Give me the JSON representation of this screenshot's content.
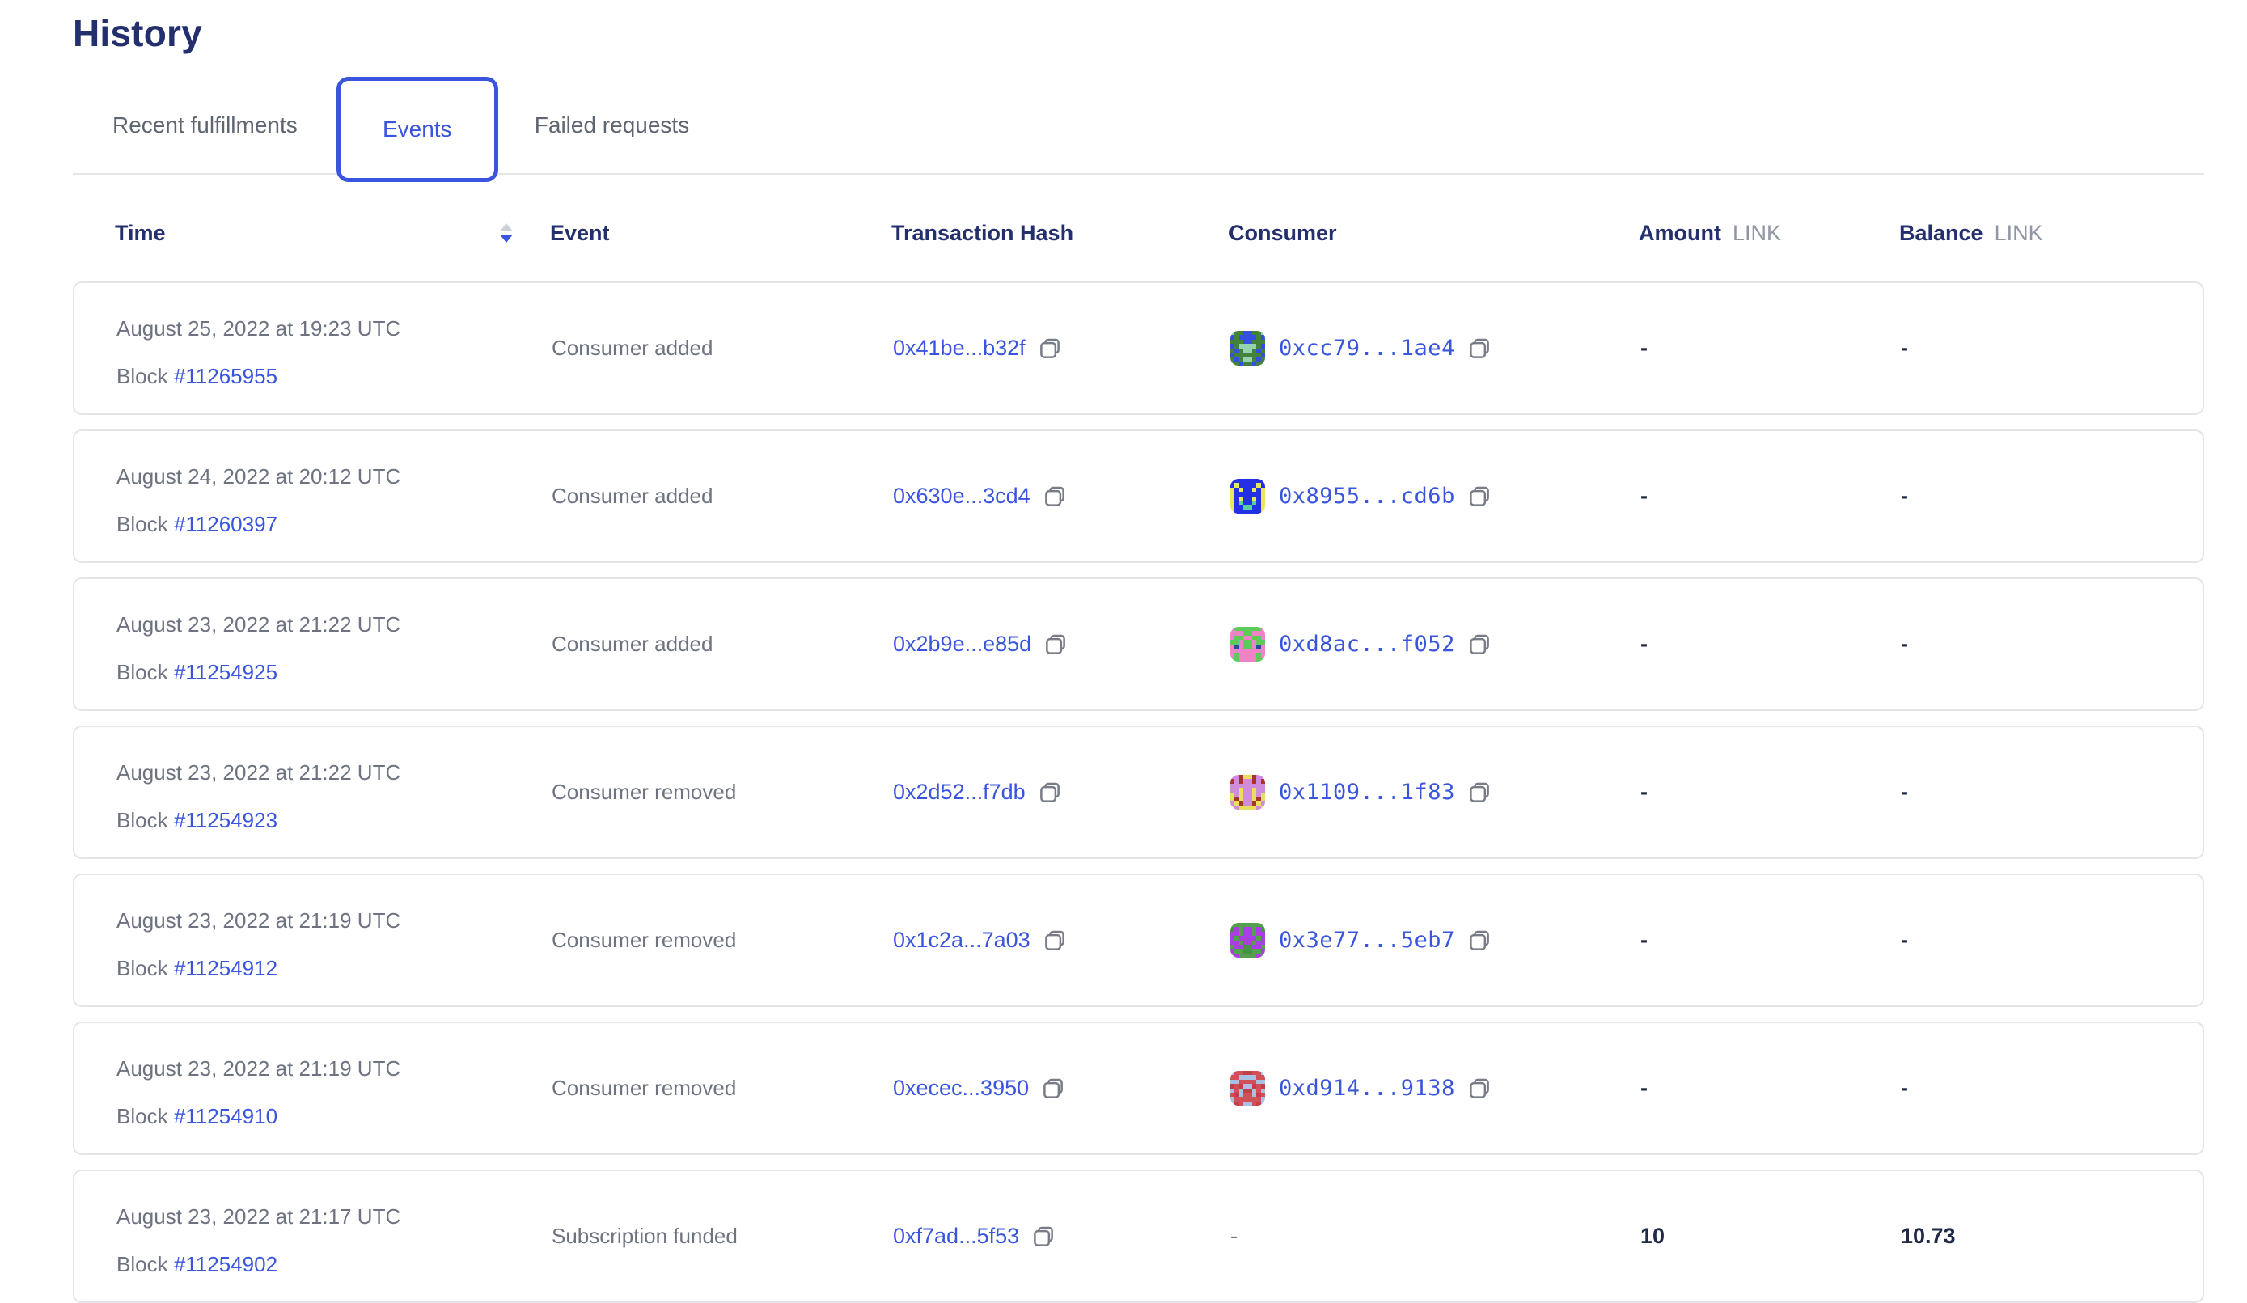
{
  "page": {
    "title": "History"
  },
  "tabs": [
    {
      "label": "Recent fulfillments",
      "active": false
    },
    {
      "label": "Events",
      "active": true
    },
    {
      "label": "Failed requests",
      "active": false
    }
  ],
  "table": {
    "block_label": "Block",
    "headers": {
      "time": "Time",
      "event": "Event",
      "hash": "Transaction Hash",
      "consumer": "Consumer",
      "amount": "Amount",
      "balance": "Balance",
      "unit": "LINK"
    },
    "rows": [
      {
        "date": "August 25, 2022 at 19:23 UTC",
        "block": "#11265955",
        "event": "Consumer added",
        "hash": "0x41be...b32f",
        "consumer": "0xcc79...1ae4",
        "amount": "-",
        "balance": "-",
        "blockie": {
          "bg": "#43813c",
          "fg": "#3350e0",
          "spot": "#93d4ae"
        }
      },
      {
        "date": "August 24, 2022 at 20:12 UTC",
        "block": "#11260397",
        "event": "Consumer added",
        "hash": "0x630e...3cd4",
        "consumer": "0x8955...cd6b",
        "amount": "-",
        "balance": "-",
        "blockie": {
          "bg": "#2430e3",
          "fg": "#e9e75b",
          "spot": "#57d29e"
        }
      },
      {
        "date": "August 23, 2022 at 21:22 UTC",
        "block": "#11254925",
        "event": "Consumer added",
        "hash": "0x2b9e...e85d",
        "consumer": "0xd8ac...f052",
        "amount": "-",
        "balance": "-",
        "blockie": {
          "bg": "#5ecb59",
          "fg": "#ef83c5",
          "spot": "#2b4a9f"
        }
      },
      {
        "date": "August 23, 2022 at 21:22 UTC",
        "block": "#11254923",
        "event": "Consumer removed",
        "hash": "0x2d52...f7db",
        "consumer": "0x1109...1f83",
        "amount": "-",
        "balance": "-",
        "blockie": {
          "bg": "#cf8cdb",
          "fg": "#e6e05e",
          "spot": "#a8352c"
        }
      },
      {
        "date": "August 23, 2022 at 21:19 UTC",
        "block": "#11254912",
        "event": "Consumer removed",
        "hash": "0x1c2a...7a03",
        "consumer": "0x3e77...5eb7",
        "amount": "-",
        "balance": "-",
        "blockie": {
          "bg": "#55a04f",
          "fg": "#a93fe3",
          "spot": "#479343"
        }
      },
      {
        "date": "August 23, 2022 at 21:19 UTC",
        "block": "#11254910",
        "event": "Consumer removed",
        "hash": "0xecec...3950",
        "consumer": "0xd914...9138",
        "amount": "-",
        "balance": "-",
        "blockie": {
          "bg": "#d14f57",
          "fg": "#a9bfe3",
          "spot": "#c23e48"
        }
      },
      {
        "date": "August 23, 2022 at 21:17 UTC",
        "block": "#11254902",
        "event": "Subscription funded",
        "hash": "0xf7ad...5f53",
        "consumer": "-",
        "amount": "10",
        "balance": "10.73",
        "blockie": null
      }
    ]
  },
  "colors": {
    "link_blue": "#3a55dd",
    "heading_navy": "#24306e",
    "value_dark": "#202945",
    "muted_gray": "#6d7380",
    "unit_gray": "#9097a3",
    "card_border": "#e5e5e9"
  }
}
